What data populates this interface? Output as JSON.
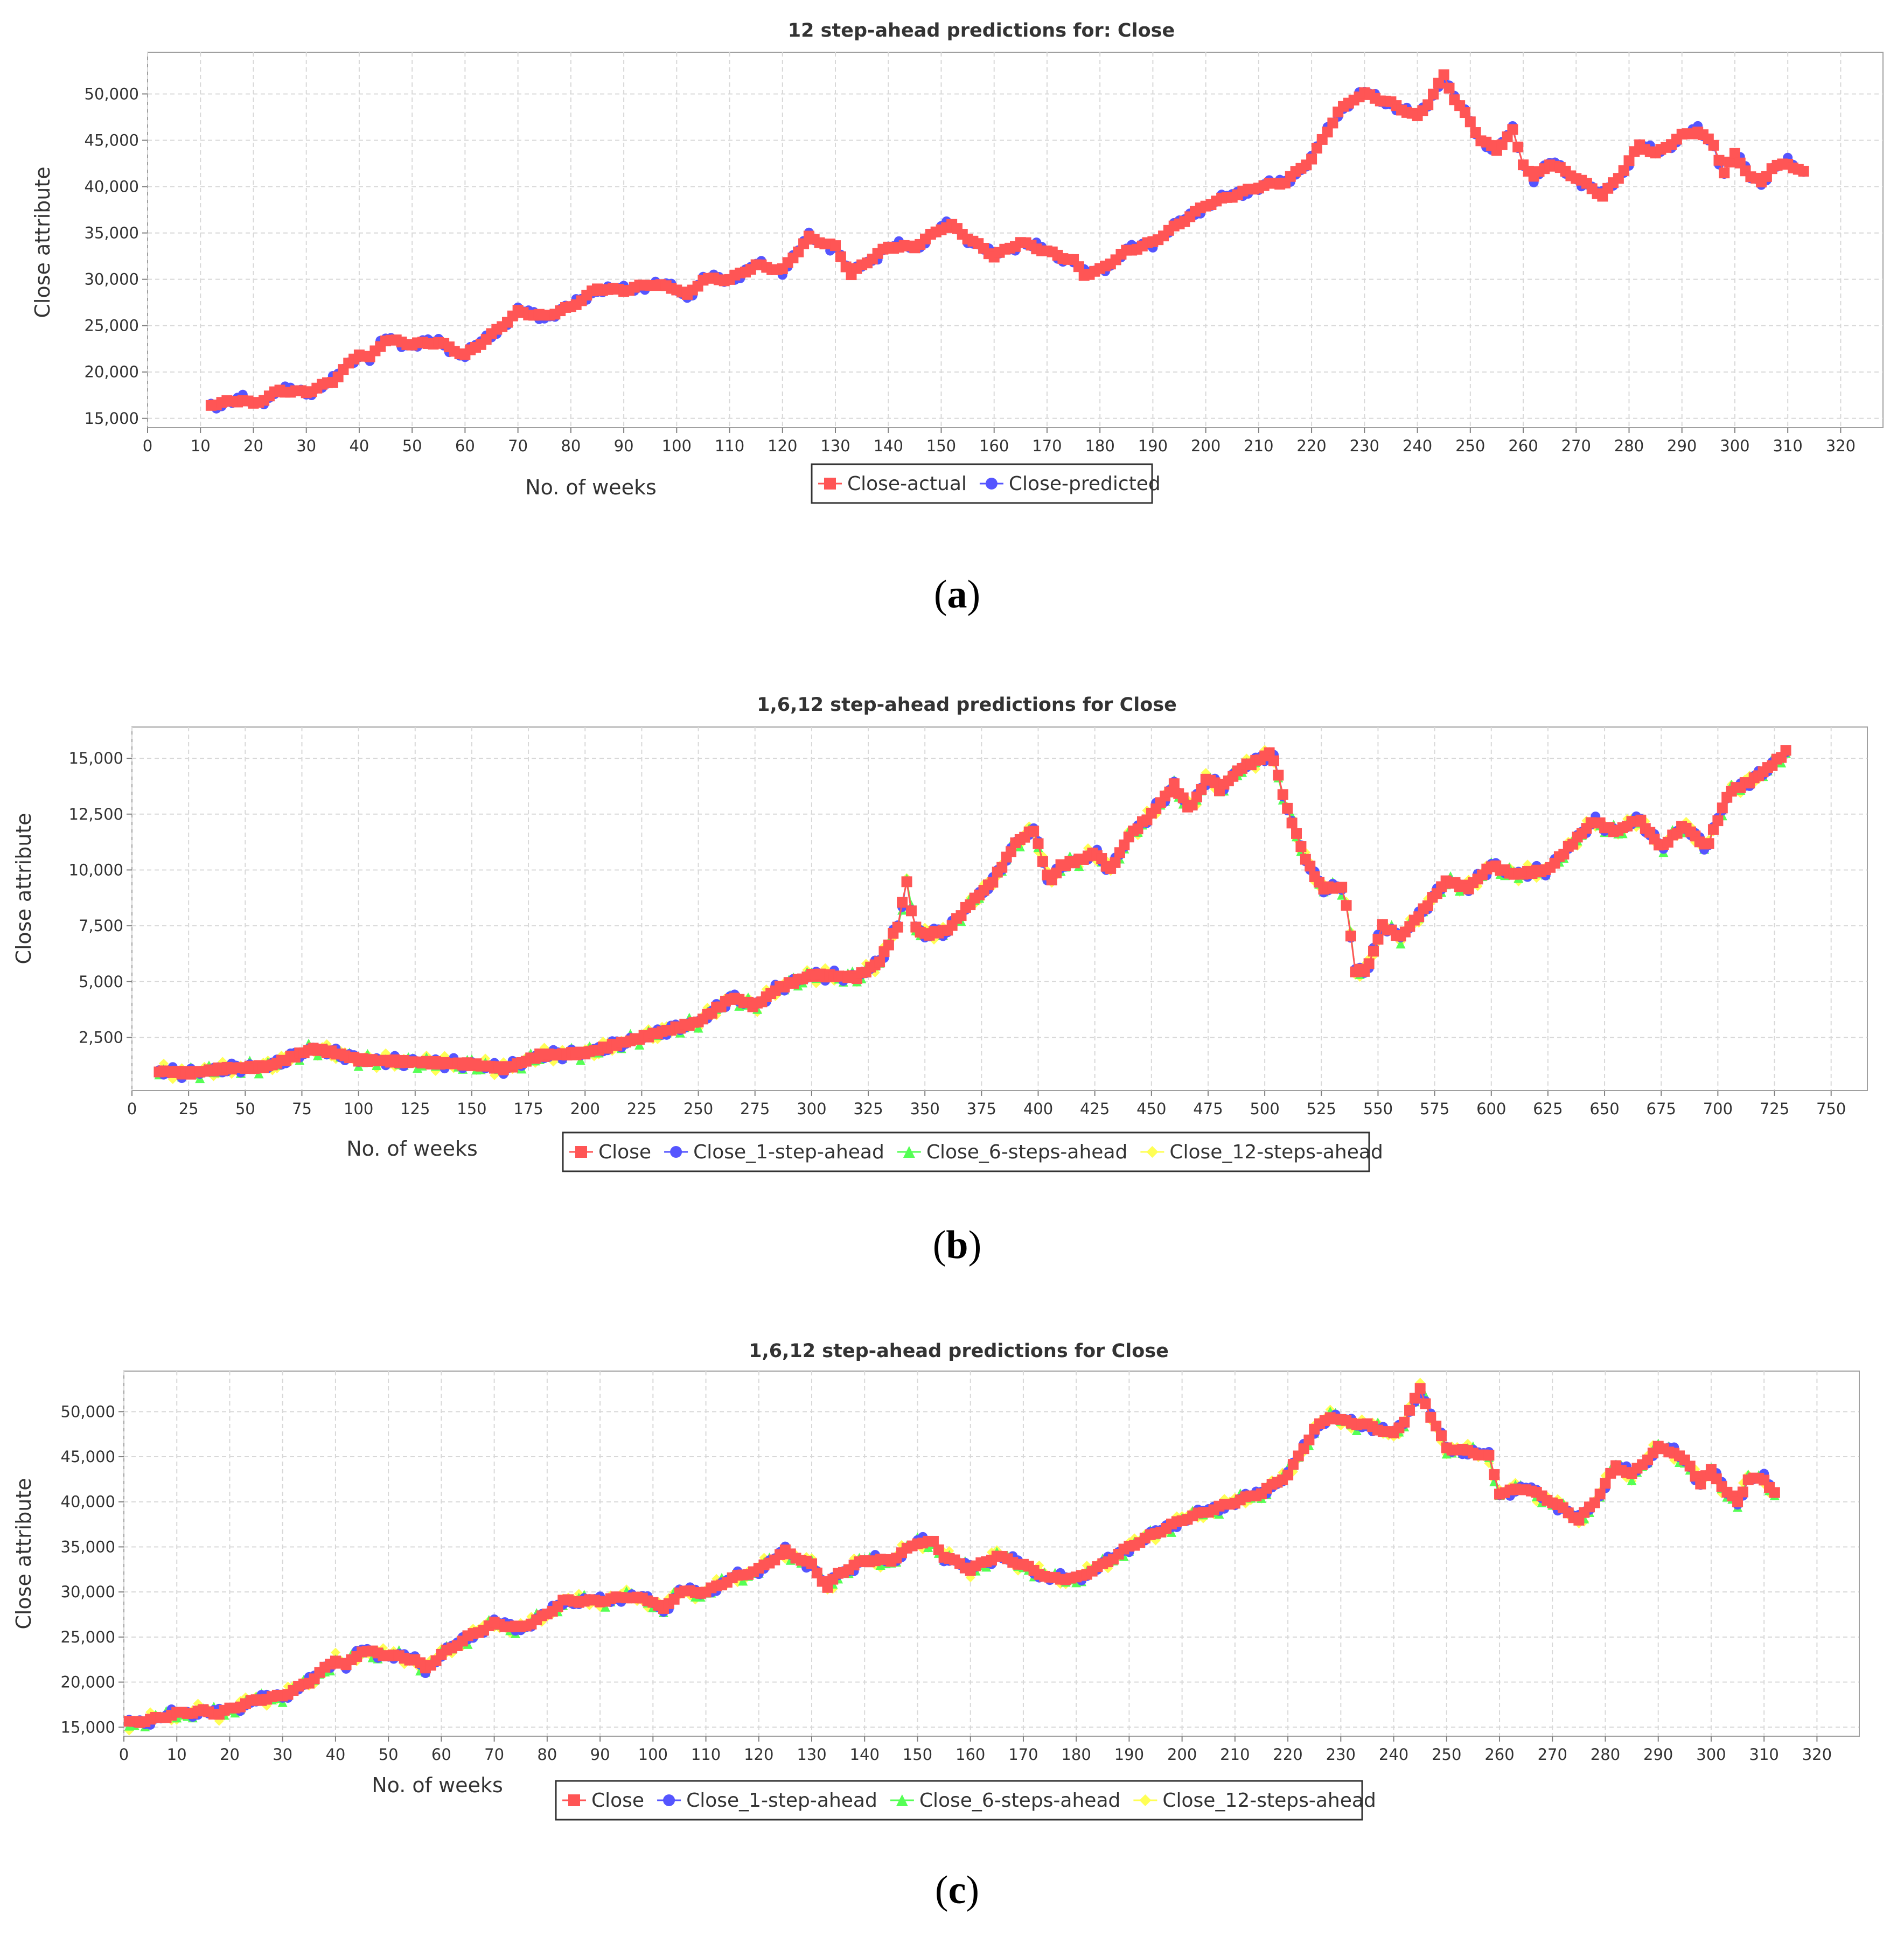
{
  "chart_data": [
    {
      "type": "line",
      "title": "12 step-ahead predictions for: Close",
      "xlabel": "No. of weeks",
      "ylabel": "Close attribute",
      "xlim": [
        0,
        328
      ],
      "ylim": [
        14000,
        54500
      ],
      "xticks": [
        0,
        10,
        20,
        30,
        40,
        50,
        60,
        70,
        80,
        90,
        100,
        110,
        120,
        130,
        140,
        150,
        160,
        170,
        180,
        190,
        200,
        210,
        220,
        230,
        240,
        250,
        260,
        270,
        280,
        290,
        300,
        310,
        320
      ],
      "yticks": [
        15000,
        20000,
        25000,
        30000,
        35000,
        40000,
        45000,
        50000
      ],
      "ytick_labels": [
        "15,000",
        "20,000",
        "25,000",
        "30,000",
        "35,000",
        "40,000",
        "45,000",
        "50,000"
      ],
      "grid": true,
      "legend_position": "bottom",
      "x_start": 12,
      "x_end": 313,
      "anchors": [
        [
          12,
          16500
        ],
        [
          18,
          17000
        ],
        [
          20,
          16500
        ],
        [
          25,
          18000
        ],
        [
          30,
          17800
        ],
        [
          35,
          19000
        ],
        [
          40,
          22000
        ],
        [
          42,
          21500
        ],
        [
          45,
          23500
        ],
        [
          50,
          23000
        ],
        [
          55,
          23200
        ],
        [
          60,
          21800
        ],
        [
          65,
          24000
        ],
        [
          70,
          26500
        ],
        [
          75,
          26000
        ],
        [
          80,
          27000
        ],
        [
          85,
          29000
        ],
        [
          90,
          28800
        ],
        [
          95,
          29500
        ],
        [
          100,
          29000
        ],
        [
          102,
          28200
        ],
        [
          105,
          30000
        ],
        [
          110,
          30000
        ],
        [
          115,
          31500
        ],
        [
          120,
          31000
        ],
        [
          125,
          34500
        ],
        [
          130,
          33500
        ],
        [
          133,
          30500
        ],
        [
          135,
          31500
        ],
        [
          140,
          33500
        ],
        [
          145,
          33500
        ],
        [
          150,
          35500
        ],
        [
          152,
          35800
        ],
        [
          155,
          34500
        ],
        [
          160,
          32500
        ],
        [
          165,
          34000
        ],
        [
          170,
          33000
        ],
        [
          175,
          32000
        ],
        [
          177,
          30500
        ],
        [
          180,
          31000
        ],
        [
          185,
          33000
        ],
        [
          190,
          34000
        ],
        [
          195,
          36000
        ],
        [
          200,
          38000
        ],
        [
          205,
          39000
        ],
        [
          210,
          40000
        ],
        [
          215,
          40500
        ],
        [
          218,
          42000
        ],
        [
          220,
          43000
        ],
        [
          225,
          48000
        ],
        [
          228,
          49500
        ],
        [
          230,
          50000
        ],
        [
          235,
          49000
        ],
        [
          240,
          47500
        ],
        [
          242,
          49000
        ],
        [
          245,
          52000
        ],
        [
          247,
          49500
        ],
        [
          250,
          47000
        ],
        [
          252,
          45000
        ],
        [
          255,
          44000
        ],
        [
          258,
          46000
        ],
        [
          260,
          42500
        ],
        [
          262,
          41000
        ],
        [
          265,
          42500
        ],
        [
          270,
          41000
        ],
        [
          275,
          39000
        ],
        [
          278,
          41000
        ],
        [
          282,
          44500
        ],
        [
          285,
          43500
        ],
        [
          290,
          45500
        ],
        [
          293,
          46000
        ],
        [
          296,
          44500
        ],
        [
          298,
          41500
        ],
        [
          300,
          43500
        ],
        [
          303,
          41000
        ],
        [
          305,
          40500
        ],
        [
          307,
          42000
        ],
        [
          310,
          42500
        ],
        [
          313,
          41500
        ]
      ],
      "series": [
        {
          "name": "Close-actual",
          "color": "#ff5555",
          "marker": "square"
        },
        {
          "name": "Close-predicted",
          "color": "#5555ff",
          "marker": "circle"
        }
      ]
    },
    {
      "type": "line",
      "title": "1,6,12 step-ahead predictions for Close",
      "xlabel": "No. of weeks",
      "ylabel": "Close attribute",
      "xlim": [
        0,
        766
      ],
      "ylim": [
        125,
        16400
      ],
      "xticks": [
        0,
        25,
        50,
        75,
        100,
        125,
        150,
        175,
        200,
        225,
        250,
        275,
        300,
        325,
        350,
        375,
        400,
        425,
        450,
        475,
        500,
        525,
        550,
        575,
        600,
        625,
        650,
        675,
        700,
        725,
        750
      ],
      "yticks": [
        2500,
        5000,
        7500,
        10000,
        12500,
        15000
      ],
      "ytick_labels": [
        "2,500",
        "5,000",
        "7,500",
        "10,000",
        "12,500",
        "15,000"
      ],
      "grid": true,
      "legend_position": "bottom",
      "x_start": 12,
      "x_end": 730,
      "anchors": [
        [
          12,
          1000
        ],
        [
          25,
          900
        ],
        [
          40,
          1100
        ],
        [
          60,
          1200
        ],
        [
          75,
          1800
        ],
        [
          80,
          2000
        ],
        [
          90,
          1800
        ],
        [
          100,
          1500
        ],
        [
          150,
          1300
        ],
        [
          165,
          1100
        ],
        [
          180,
          1700
        ],
        [
          200,
          1800
        ],
        [
          225,
          2500
        ],
        [
          250,
          3200
        ],
        [
          265,
          4300
        ],
        [
          275,
          3900
        ],
        [
          285,
          4700
        ],
        [
          300,
          5300
        ],
        [
          320,
          5200
        ],
        [
          330,
          5900
        ],
        [
          338,
          7500
        ],
        [
          342,
          9500
        ],
        [
          345,
          7500
        ],
        [
          350,
          7100
        ],
        [
          360,
          7300
        ],
        [
          370,
          8500
        ],
        [
          380,
          9500
        ],
        [
          390,
          11200
        ],
        [
          398,
          11800
        ],
        [
          405,
          9400
        ],
        [
          410,
          10200
        ],
        [
          420,
          10500
        ],
        [
          425,
          10800
        ],
        [
          432,
          10000
        ],
        [
          440,
          11500
        ],
        [
          450,
          12500
        ],
        [
          460,
          13800
        ],
        [
          467,
          12700
        ],
        [
          475,
          14200
        ],
        [
          480,
          13600
        ],
        [
          490,
          14600
        ],
        [
          497,
          14900
        ],
        [
          503,
          15300
        ],
        [
          510,
          12700
        ],
        [
          518,
          10500
        ],
        [
          525,
          9200
        ],
        [
          535,
          9200
        ],
        [
          540,
          5500
        ],
        [
          545,
          5500
        ],
        [
          552,
          7500
        ],
        [
          560,
          7000
        ],
        [
          570,
          8200
        ],
        [
          580,
          9500
        ],
        [
          590,
          9200
        ],
        [
          600,
          10200
        ],
        [
          610,
          9800
        ],
        [
          625,
          10000
        ],
        [
          645,
          12200
        ],
        [
          655,
          11700
        ],
        [
          665,
          12300
        ],
        [
          675,
          11000
        ],
        [
          685,
          12000
        ],
        [
          695,
          11000
        ],
        [
          705,
          13500
        ],
        [
          715,
          14000
        ],
        [
          725,
          14800
        ],
        [
          730,
          15300
        ]
      ],
      "series": [
        {
          "name": "Close",
          "color": "#ff5555",
          "marker": "square"
        },
        {
          "name": "Close_1-step-ahead",
          "color": "#5555ff",
          "marker": "circle"
        },
        {
          "name": "Close_6-steps-ahead",
          "color": "#55ff55",
          "marker": "triangle"
        },
        {
          "name": "Close_12-steps-ahead",
          "color": "#ffff55",
          "marker": "diamond"
        }
      ]
    },
    {
      "type": "line",
      "title": "1,6,12 step-ahead predictions for Close",
      "xlabel": "No. of weeks",
      "ylabel": "Close attribute",
      "xlim": [
        0,
        328
      ],
      "ylim": [
        14000,
        54500
      ],
      "xticks": [
        0,
        10,
        20,
        30,
        40,
        50,
        60,
        70,
        80,
        90,
        100,
        110,
        120,
        130,
        140,
        150,
        160,
        170,
        180,
        190,
        200,
        210,
        220,
        230,
        240,
        250,
        260,
        270,
        280,
        290,
        300,
        310,
        320
      ],
      "yticks": [
        15000,
        20000,
        25000,
        30000,
        35000,
        40000,
        45000,
        50000
      ],
      "ytick_labels": [
        "15,000",
        "20,000",
        "25,000",
        "30,000",
        "35,000",
        "40,000",
        "45,000",
        "50,000"
      ],
      "grid": true,
      "legend_position": "bottom",
      "x_start": 1,
      "x_end": 312,
      "anchors": [
        [
          1,
          15500
        ],
        [
          5,
          15800
        ],
        [
          10,
          16500
        ],
        [
          15,
          16800
        ],
        [
          18,
          16500
        ],
        [
          20,
          17000
        ],
        [
          25,
          18000
        ],
        [
          30,
          18500
        ],
        [
          35,
          20000
        ],
        [
          40,
          22500
        ],
        [
          42,
          21800
        ],
        [
          45,
          23500
        ],
        [
          50,
          23000
        ],
        [
          55,
          22500
        ],
        [
          57,
          21500
        ],
        [
          60,
          23000
        ],
        [
          65,
          25000
        ],
        [
          70,
          26500
        ],
        [
          75,
          26000
        ],
        [
          80,
          27500
        ],
        [
          83,
          29000
        ],
        [
          90,
          29000
        ],
        [
          95,
          29500
        ],
        [
          100,
          29000
        ],
        [
          102,
          28000
        ],
        [
          105,
          30000
        ],
        [
          110,
          30000
        ],
        [
          115,
          31500
        ],
        [
          120,
          32500
        ],
        [
          125,
          34500
        ],
        [
          130,
          33000
        ],
        [
          133,
          30500
        ],
        [
          135,
          32000
        ],
        [
          140,
          33500
        ],
        [
          145,
          33500
        ],
        [
          150,
          35500
        ],
        [
          153,
          35500
        ],
        [
          155,
          34000
        ],
        [
          160,
          32500
        ],
        [
          165,
          34000
        ],
        [
          170,
          33000
        ],
        [
          175,
          31500
        ],
        [
          180,
          31500
        ],
        [
          185,
          33000
        ],
        [
          190,
          35000
        ],
        [
          195,
          36500
        ],
        [
          200,
          38000
        ],
        [
          205,
          39000
        ],
        [
          210,
          40000
        ],
        [
          215,
          41000
        ],
        [
          220,
          43000
        ],
        [
          225,
          48000
        ],
        [
          228,
          49500
        ],
        [
          230,
          49000
        ],
        [
          235,
          48500
        ],
        [
          240,
          47500
        ],
        [
          242,
          49000
        ],
        [
          245,
          52500
        ],
        [
          247,
          49500
        ],
        [
          250,
          46000
        ],
        [
          255,
          45500
        ],
        [
          258,
          45000
        ],
        [
          260,
          41000
        ],
        [
          265,
          41500
        ],
        [
          270,
          40000
        ],
        [
          275,
          38000
        ],
        [
          278,
          40000
        ],
        [
          282,
          44000
        ],
        [
          285,
          43000
        ],
        [
          290,
          46000
        ],
        [
          293,
          45500
        ],
        [
          296,
          44000
        ],
        [
          298,
          42000
        ],
        [
          300,
          43500
        ],
        [
          303,
          41000
        ],
        [
          305,
          40000
        ],
        [
          307,
          42500
        ],
        [
          310,
          42500
        ],
        [
          312,
          41000
        ]
      ],
      "series": [
        {
          "name": "Close",
          "color": "#ff5555",
          "marker": "square"
        },
        {
          "name": "Close_1-step-ahead",
          "color": "#5555ff",
          "marker": "circle"
        },
        {
          "name": "Close_6-steps-ahead",
          "color": "#55ff55",
          "marker": "triangle"
        },
        {
          "name": "Close_12-steps-ahead",
          "color": "#ffff55",
          "marker": "diamond"
        }
      ]
    }
  ],
  "panel_labels": [
    "a",
    "b",
    "c"
  ]
}
